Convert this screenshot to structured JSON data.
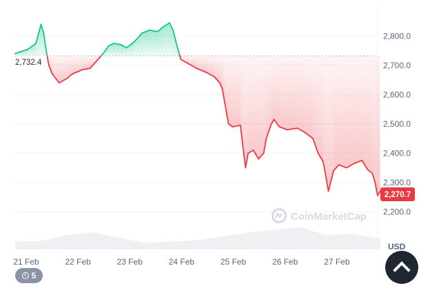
{
  "chart_data": {
    "type": "line",
    "title": "",
    "xlabel": "",
    "ylabel": "",
    "unit_label": "USD",
    "reference_value": 2732.4,
    "reference_label": "2,732.4",
    "current_value": 2270.7,
    "current_label": "2,270.7",
    "ylim": [
      2170,
      2890
    ],
    "yticks": [
      {
        "value": 2200,
        "label": "2,200.0"
      },
      {
        "value": 2300,
        "label": "2,300.0"
      },
      {
        "value": 2400,
        "label": "2,400.0"
      },
      {
        "value": 2500,
        "label": "2,500.0"
      },
      {
        "value": 2600,
        "label": "2,600.0"
      },
      {
        "value": 2700,
        "label": "2,700.0"
      },
      {
        "value": 2800,
        "label": "2,800.0"
      }
    ],
    "xticks": [
      {
        "day": 0.0,
        "label": "21 Feb"
      },
      {
        "day": 1.0,
        "label": "22 Feb"
      },
      {
        "day": 2.0,
        "label": "23 Feb"
      },
      {
        "day": 3.0,
        "label": "24 Feb"
      },
      {
        "day": 4.0,
        "label": "25 Feb"
      },
      {
        "day": 5.0,
        "label": "26 Feb"
      },
      {
        "day": 6.0,
        "label": "27 Feb"
      }
    ],
    "xlim": [
      0,
      7.0
    ],
    "series": [
      {
        "points": [
          [
            0.0,
            2740
          ],
          [
            0.25,
            2755
          ],
          [
            0.4,
            2775
          ],
          [
            0.5,
            2840
          ],
          [
            0.55,
            2810
          ],
          [
            0.6,
            2750
          ],
          [
            0.65,
            2700
          ],
          [
            0.72,
            2670
          ],
          [
            0.85,
            2640
          ],
          [
            1.0,
            2655
          ],
          [
            1.1,
            2670
          ],
          [
            1.3,
            2685
          ],
          [
            1.45,
            2690
          ],
          [
            1.55,
            2710
          ],
          [
            1.7,
            2740
          ],
          [
            1.8,
            2765
          ],
          [
            1.9,
            2775
          ],
          [
            2.05,
            2770
          ],
          [
            2.15,
            2760
          ],
          [
            2.3,
            2780
          ],
          [
            2.45,
            2810
          ],
          [
            2.6,
            2820
          ],
          [
            2.75,
            2815
          ],
          [
            2.85,
            2830
          ],
          [
            2.98,
            2845
          ],
          [
            3.05,
            2820
          ],
          [
            3.12,
            2770
          ],
          [
            3.2,
            2720
          ],
          [
            3.35,
            2705
          ],
          [
            3.5,
            2690
          ],
          [
            3.7,
            2675
          ],
          [
            3.85,
            2660
          ],
          [
            3.95,
            2640
          ],
          [
            4.0,
            2620
          ],
          [
            4.05,
            2570
          ],
          [
            4.12,
            2500
          ],
          [
            4.2,
            2490
          ],
          [
            4.35,
            2495
          ],
          [
            4.4,
            2420
          ],
          [
            4.45,
            2350
          ],
          [
            4.5,
            2400
          ],
          [
            4.6,
            2410
          ],
          [
            4.7,
            2380
          ],
          [
            4.8,
            2400
          ],
          [
            4.85,
            2450
          ],
          [
            4.95,
            2500
          ],
          [
            5.0,
            2515
          ],
          [
            5.1,
            2490
          ],
          [
            5.25,
            2480
          ],
          [
            5.45,
            2485
          ],
          [
            5.6,
            2470
          ],
          [
            5.75,
            2450
          ],
          [
            5.85,
            2400
          ],
          [
            5.95,
            2370
          ],
          [
            6.05,
            2270
          ],
          [
            6.15,
            2340
          ],
          [
            6.25,
            2360
          ],
          [
            6.4,
            2350
          ],
          [
            6.55,
            2365
          ],
          [
            6.7,
            2375
          ],
          [
            6.8,
            2345
          ],
          [
            6.9,
            2330
          ],
          [
            6.95,
            2300
          ],
          [
            7.0,
            2255
          ],
          [
            7.05,
            2270
          ]
        ]
      }
    ],
    "volume": [
      {
        "day": 0.0,
        "level": 0.3
      },
      {
        "day": 0.5,
        "level": 0.32
      },
      {
        "day": 1.0,
        "level": 0.55
      },
      {
        "day": 1.5,
        "level": 0.65
      },
      {
        "day": 2.0,
        "level": 0.45
      },
      {
        "day": 2.5,
        "level": 0.25
      },
      {
        "day": 3.0,
        "level": 0.3
      },
      {
        "day": 3.5,
        "level": 0.35
      },
      {
        "day": 4.0,
        "level": 0.5
      },
      {
        "day": 4.5,
        "level": 0.65
      },
      {
        "day": 5.0,
        "level": 0.75
      },
      {
        "day": 5.5,
        "level": 0.85
      },
      {
        "day": 6.0,
        "level": 0.55
      },
      {
        "day": 6.5,
        "level": 0.6
      },
      {
        "day": 7.05,
        "level": 0.4
      }
    ],
    "grid": true,
    "up_color": "#16c784",
    "down_color": "#ea3943"
  },
  "watermark": "CoinMarketCap",
  "history_count": "5",
  "icons": {
    "history": "history-clock-icon",
    "back_to_top": "chevron-up-icon",
    "logo": "coinmarketcap-logo-icon"
  }
}
